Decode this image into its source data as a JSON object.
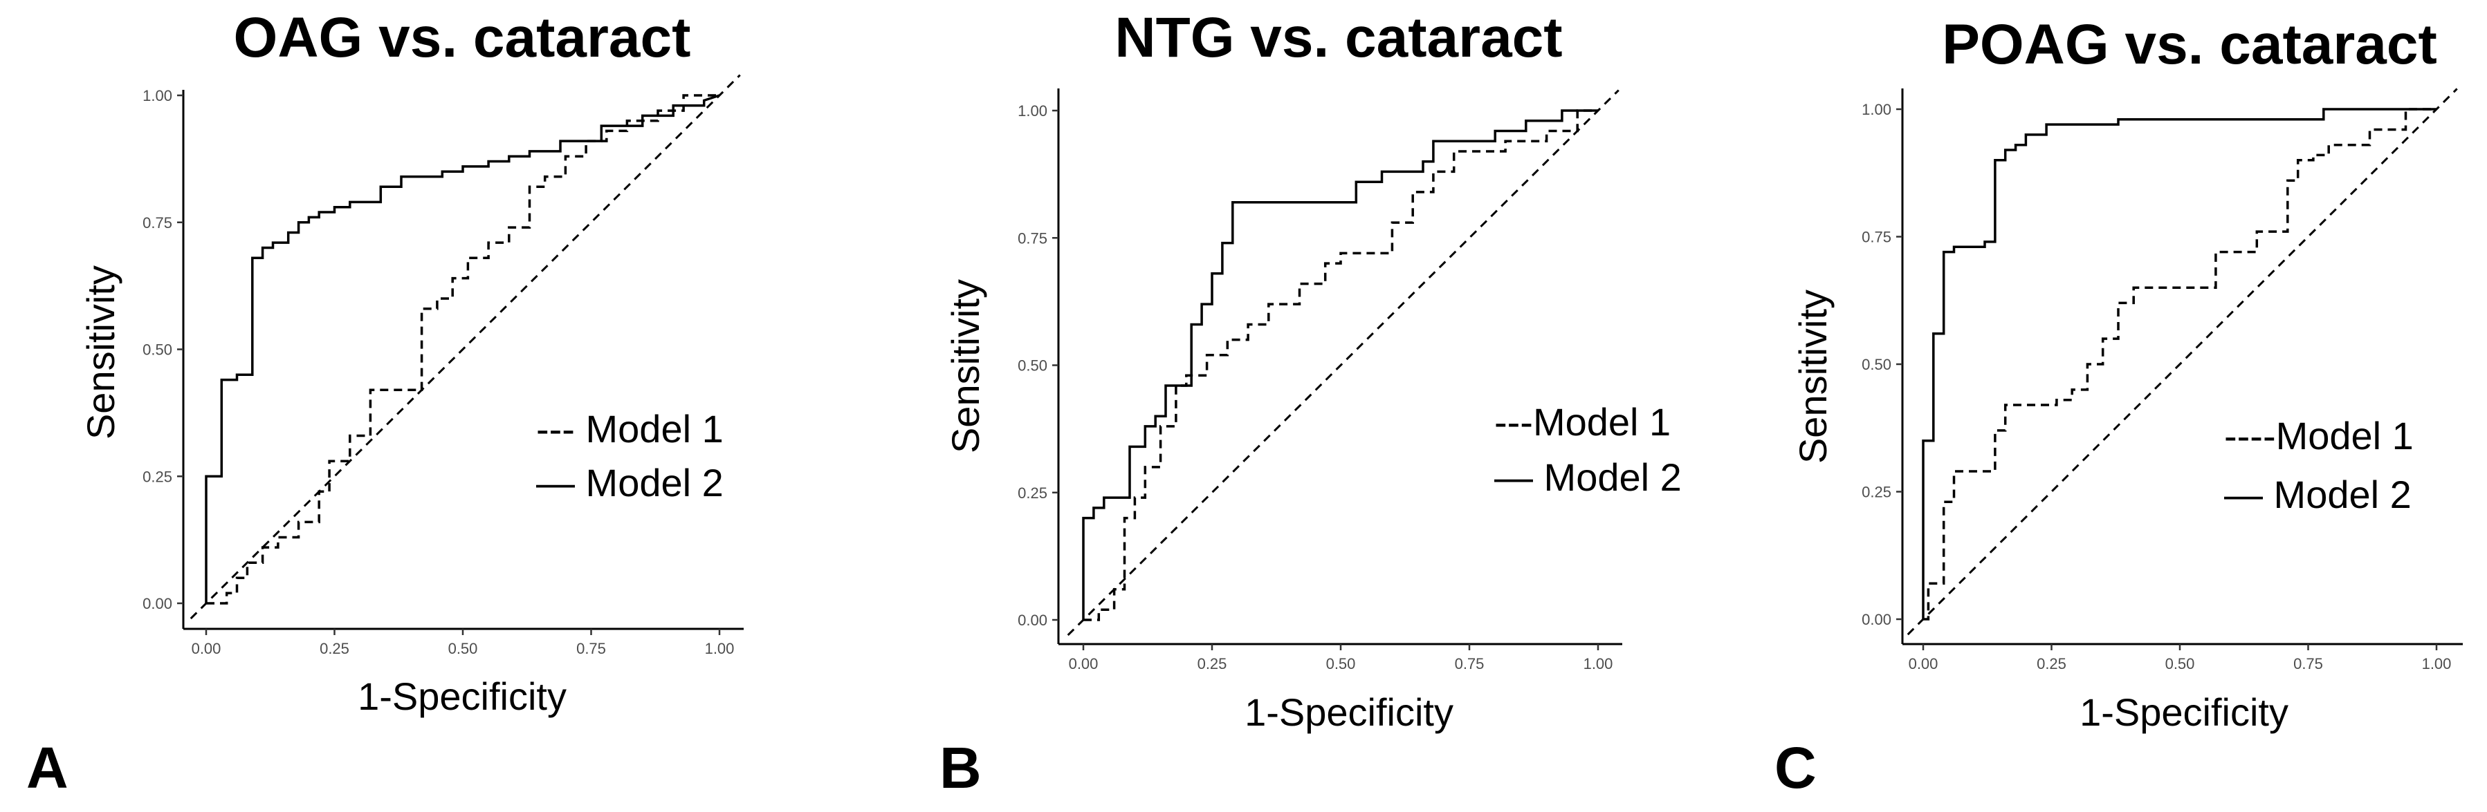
{
  "chart_data": [
    {
      "type": "line",
      "panel_label": "A",
      "title": "OAG vs. cataract",
      "xlabel": "1-Specificity",
      "ylabel": "Sensitivity",
      "xlim": [
        0,
        1
      ],
      "ylim": [
        0,
        1
      ],
      "ticks": [
        "0.00",
        "0.25",
        "0.50",
        "0.75",
        "1.00"
      ],
      "tick_values": [
        0,
        0.25,
        0.5,
        0.75,
        1
      ],
      "legend_position": "lower-right",
      "series": [
        {
          "name": "Model 1",
          "legend_label": "--- Model 1",
          "style": "dashed",
          "x": [
            0,
            0.04,
            0.04,
            0.06,
            0.06,
            0.08,
            0.08,
            0.11,
            0.11,
            0.14,
            0.14,
            0.18,
            0.18,
            0.22,
            0.22,
            0.24,
            0.24,
            0.28,
            0.28,
            0.32,
            0.32,
            0.42,
            0.42,
            0.45,
            0.45,
            0.48,
            0.48,
            0.51,
            0.51,
            0.55,
            0.55,
            0.59,
            0.59,
            0.63,
            0.63,
            0.66,
            0.66,
            0.7,
            0.7,
            0.74,
            0.74,
            0.78,
            0.78,
            0.82,
            0.82,
            0.88,
            0.88,
            0.93,
            0.93,
            1
          ],
          "y": [
            0,
            0,
            0.02,
            0.02,
            0.05,
            0.05,
            0.08,
            0.08,
            0.11,
            0.11,
            0.13,
            0.13,
            0.16,
            0.16,
            0.22,
            0.22,
            0.28,
            0.28,
            0.33,
            0.33,
            0.42,
            0.42,
            0.58,
            0.58,
            0.6,
            0.6,
            0.64,
            0.64,
            0.68,
            0.68,
            0.71,
            0.71,
            0.74,
            0.74,
            0.82,
            0.82,
            0.84,
            0.84,
            0.88,
            0.88,
            0.91,
            0.91,
            0.93,
            0.93,
            0.95,
            0.95,
            0.97,
            0.97,
            1,
            1
          ]
        },
        {
          "name": "Model 2",
          "legend_label": "— Model 2",
          "style": "solid",
          "x": [
            0,
            0,
            0.03,
            0.03,
            0.06,
            0.06,
            0.09,
            0.09,
            0.11,
            0.11,
            0.13,
            0.13,
            0.16,
            0.16,
            0.18,
            0.18,
            0.2,
            0.2,
            0.22,
            0.22,
            0.25,
            0.25,
            0.28,
            0.28,
            0.34,
            0.34,
            0.38,
            0.38,
            0.46,
            0.46,
            0.5,
            0.5,
            0.55,
            0.55,
            0.59,
            0.59,
            0.63,
            0.63,
            0.69,
            0.69,
            0.77,
            0.77,
            0.85,
            0.85,
            0.91,
            0.91,
            0.97,
            0.97,
            1
          ],
          "y": [
            0,
            0.25,
            0.25,
            0.44,
            0.44,
            0.45,
            0.45,
            0.68,
            0.68,
            0.7,
            0.7,
            0.71,
            0.71,
            0.73,
            0.73,
            0.75,
            0.75,
            0.76,
            0.76,
            0.77,
            0.77,
            0.78,
            0.78,
            0.79,
            0.79,
            0.82,
            0.82,
            0.84,
            0.84,
            0.85,
            0.85,
            0.86,
            0.86,
            0.87,
            0.87,
            0.88,
            0.88,
            0.89,
            0.89,
            0.91,
            0.91,
            0.94,
            0.94,
            0.96,
            0.96,
            0.98,
            0.98,
            0.99,
            1
          ]
        }
      ]
    },
    {
      "type": "line",
      "panel_label": "B",
      "title": "NTG vs. cataract",
      "xlabel": "1-Specificity",
      "ylabel": "Sensitivity",
      "xlim": [
        0,
        1
      ],
      "ylim": [
        0,
        1
      ],
      "ticks": [
        "0.00",
        "0.25",
        "0.50",
        "0.75",
        "1.00"
      ],
      "tick_values": [
        0,
        0.25,
        0.5,
        0.75,
        1
      ],
      "legend_position": "lower-right",
      "series": [
        {
          "name": "Model 1",
          "legend_label": "---Model 1",
          "style": "dashed",
          "x": [
            0,
            0.03,
            0.03,
            0.06,
            0.06,
            0.08,
            0.08,
            0.1,
            0.1,
            0.12,
            0.12,
            0.15,
            0.15,
            0.18,
            0.18,
            0.2,
            0.2,
            0.24,
            0.24,
            0.28,
            0.28,
            0.32,
            0.32,
            0.36,
            0.36,
            0.42,
            0.42,
            0.47,
            0.47,
            0.5,
            0.5,
            0.6,
            0.6,
            0.64,
            0.64,
            0.68,
            0.68,
            0.72,
            0.72,
            0.82,
            0.82,
            0.9,
            0.9,
            0.96,
            0.96,
            1
          ],
          "y": [
            0,
            0,
            0.02,
            0.02,
            0.06,
            0.06,
            0.2,
            0.2,
            0.24,
            0.24,
            0.3,
            0.3,
            0.38,
            0.38,
            0.46,
            0.46,
            0.48,
            0.48,
            0.52,
            0.52,
            0.55,
            0.55,
            0.58,
            0.58,
            0.62,
            0.62,
            0.66,
            0.66,
            0.7,
            0.7,
            0.72,
            0.72,
            0.78,
            0.78,
            0.84,
            0.84,
            0.88,
            0.88,
            0.92,
            0.92,
            0.94,
            0.94,
            0.96,
            0.96,
            1,
            1
          ]
        },
        {
          "name": "Model 2",
          "legend_label": "— Model 2",
          "style": "solid",
          "x": [
            0,
            0,
            0.02,
            0.02,
            0.04,
            0.04,
            0.09,
            0.09,
            0.12,
            0.12,
            0.14,
            0.14,
            0.16,
            0.16,
            0.21,
            0.21,
            0.23,
            0.23,
            0.25,
            0.25,
            0.27,
            0.27,
            0.29,
            0.29,
            0.53,
            0.53,
            0.58,
            0.58,
            0.66,
            0.66,
            0.68,
            0.68,
            0.8,
            0.8,
            0.86,
            0.86,
            0.93,
            0.93,
            0.98,
            0.98,
            1
          ],
          "y": [
            0,
            0.2,
            0.2,
            0.22,
            0.22,
            0.24,
            0.24,
            0.34,
            0.34,
            0.38,
            0.38,
            0.4,
            0.4,
            0.46,
            0.46,
            0.58,
            0.58,
            0.62,
            0.62,
            0.68,
            0.68,
            0.74,
            0.74,
            0.82,
            0.82,
            0.86,
            0.86,
            0.88,
            0.88,
            0.9,
            0.9,
            0.94,
            0.94,
            0.96,
            0.96,
            0.98,
            0.98,
            1,
            1,
            1,
            1
          ]
        }
      ]
    },
    {
      "type": "line",
      "panel_label": "C",
      "title": "POAG vs. cataract",
      "xlabel": "1-Specificity",
      "ylabel": "Sensitivity",
      "xlim": [
        0,
        1
      ],
      "ylim": [
        0,
        1
      ],
      "ticks": [
        "0.00",
        "0.25",
        "0.50",
        "0.75",
        "1.00"
      ],
      "tick_values": [
        0,
        0.25,
        0.5,
        0.75,
        1
      ],
      "legend_position": "lower-right",
      "series": [
        {
          "name": "Model 1",
          "legend_label": "----Model 1",
          "style": "dashed",
          "x": [
            0,
            0.01,
            0.01,
            0.04,
            0.04,
            0.06,
            0.06,
            0.14,
            0.14,
            0.16,
            0.16,
            0.18,
            0.18,
            0.26,
            0.26,
            0.29,
            0.29,
            0.32,
            0.32,
            0.35,
            0.35,
            0.38,
            0.38,
            0.41,
            0.41,
            0.45,
            0.45,
            0.57,
            0.57,
            0.65,
            0.65,
            0.71,
            0.71,
            0.73,
            0.73,
            0.76,
            0.76,
            0.79,
            0.79,
            0.87,
            0.87,
            0.94,
            0.94,
            1
          ],
          "y": [
            0,
            0,
            0.07,
            0.07,
            0.23,
            0.23,
            0.29,
            0.29,
            0.37,
            0.37,
            0.42,
            0.42,
            0.42,
            0.42,
            0.43,
            0.43,
            0.45,
            0.45,
            0.5,
            0.5,
            0.55,
            0.55,
            0.62,
            0.62,
            0.65,
            0.65,
            0.65,
            0.65,
            0.72,
            0.72,
            0.76,
            0.76,
            0.86,
            0.86,
            0.9,
            0.9,
            0.91,
            0.91,
            0.93,
            0.93,
            0.96,
            0.96,
            1,
            1
          ]
        },
        {
          "name": "Model 2",
          "legend_label": "— Model 2",
          "style": "solid",
          "x": [
            0,
            0,
            0.02,
            0.02,
            0.04,
            0.04,
            0.06,
            0.06,
            0.12,
            0.12,
            0.14,
            0.14,
            0.16,
            0.16,
            0.18,
            0.18,
            0.2,
            0.2,
            0.24,
            0.24,
            0.38,
            0.38,
            0.78,
            0.78,
            1
          ],
          "y": [
            0,
            0.35,
            0.35,
            0.56,
            0.56,
            0.72,
            0.72,
            0.73,
            0.73,
            0.74,
            0.74,
            0.9,
            0.9,
            0.92,
            0.92,
            0.93,
            0.93,
            0.95,
            0.95,
            0.97,
            0.97,
            0.98,
            0.98,
            1,
            1
          ]
        }
      ]
    }
  ]
}
